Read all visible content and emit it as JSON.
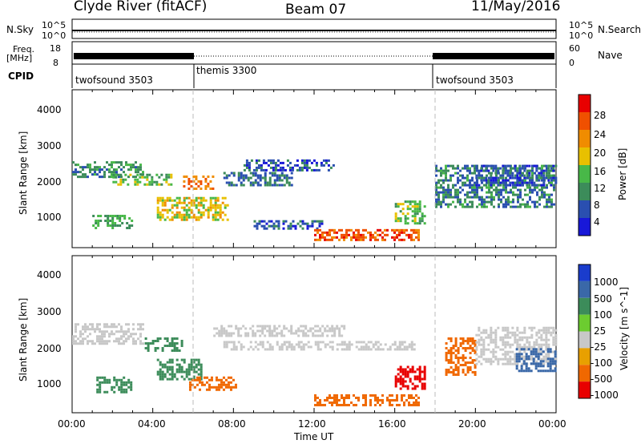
{
  "header": {
    "station": "Clyde River (fitACF)",
    "beam": "Beam 07",
    "date": "11/May/2016"
  },
  "noise_panel": {
    "left_label": "N.Sky",
    "right_label": "N.Search",
    "left_ticks": [
      "10^5",
      "10^0"
    ],
    "right_ticks": [
      "10^5",
      "10^0"
    ]
  },
  "freq_panel": {
    "left_label_line1": "Freq.",
    "left_label_line2": "[MHz]",
    "right_label": "Nave",
    "left_ticks": [
      "18",
      "8"
    ],
    "right_ticks": [
      "60",
      "0"
    ]
  },
  "cpid": {
    "label": "CPID",
    "segments": [
      {
        "name": "twofsound 3503",
        "start_h": 0,
        "end_h": 6.0
      },
      {
        "name": "themis 3300",
        "start_h": 6.0,
        "end_h": 18.0
      },
      {
        "name": "twofsound 3503",
        "start_h": 18.0,
        "end_h": 24
      }
    ]
  },
  "x_axis": {
    "label": "Time UT",
    "ticks": [
      "00:00",
      "04:00",
      "08:00",
      "12:00",
      "16:00",
      "20:00",
      "00:00"
    ]
  },
  "power_panel": {
    "ylabel": "Slant Range [km]",
    "yticks": [
      "1000",
      "2000",
      "3000",
      "4000"
    ],
    "colorbar_label": "Power [dB]",
    "colorbar_ticks": [
      "4",
      "8",
      "12",
      "16",
      "20",
      "24",
      "28"
    ],
    "colors": [
      "#1818d8",
      "#2a4fb0",
      "#3c8c5a",
      "#48b848",
      "#e8c000",
      "#f08c00",
      "#f05000",
      "#e80000"
    ]
  },
  "velocity_panel": {
    "ylabel": "Slant Range [km]",
    "yticks": [
      "1000",
      "2000",
      "3000",
      "4000"
    ],
    "colorbar_label": "Velocity [m s^-1]",
    "colorbar_ticks": [
      "1000",
      "500",
      "100",
      "25",
      "-25",
      "-100",
      "-500",
      "-1000"
    ],
    "colors": [
      "#1a3ccc",
      "#3a68a8",
      "#3c8c5a",
      "#6ccc30",
      "#c8c8c8",
      "#e8a000",
      "#f06800",
      "#e80000"
    ]
  },
  "chart_data": {
    "type": "heatmap",
    "x_range_hours": [
      0,
      24
    ],
    "y_range_km": [
      180,
      4600
    ],
    "power_regions": [
      {
        "t0": 0.0,
        "t1": 3.6,
        "r0": 2100,
        "r1": 2600,
        "db": 10
      },
      {
        "t0": 2.0,
        "t1": 5.0,
        "r0": 1900,
        "r1": 2250,
        "db": 14
      },
      {
        "t0": 1.0,
        "t1": 3.0,
        "r0": 700,
        "r1": 1100,
        "db": 12
      },
      {
        "t0": 4.2,
        "t1": 7.8,
        "r0": 900,
        "r1": 1600,
        "db": 18
      },
      {
        "t0": 5.5,
        "t1": 7.0,
        "r0": 1800,
        "r1": 2200,
        "db": 24
      },
      {
        "t0": 7.5,
        "t1": 11.0,
        "r0": 1900,
        "r1": 2300,
        "db": 8
      },
      {
        "t0": 8.5,
        "t1": 13.0,
        "r0": 2300,
        "r1": 2650,
        "db": 6
      },
      {
        "t0": 9.0,
        "t1": 12.5,
        "r0": 700,
        "r1": 950,
        "db": 6
      },
      {
        "t0": 12.0,
        "t1": 17.3,
        "r0": 350,
        "r1": 700,
        "db": 26
      },
      {
        "t0": 16.0,
        "t1": 17.5,
        "r0": 800,
        "r1": 1500,
        "db": 14
      },
      {
        "t0": 18.0,
        "t1": 24.0,
        "r0": 1300,
        "r1": 2500,
        "db": 9
      },
      {
        "t0": 20.0,
        "t1": 24.0,
        "r0": 1900,
        "r1": 2500,
        "db": 6
      }
    ],
    "velocity_regions": [
      {
        "t0": 0.0,
        "t1": 3.6,
        "r0": 2100,
        "r1": 2700,
        "v": 0
      },
      {
        "t0": 1.2,
        "t1": 3.0,
        "r0": 700,
        "r1": 1200,
        "v": 80
      },
      {
        "t0": 3.6,
        "t1": 5.5,
        "r0": 1900,
        "r1": 2300,
        "v": 90
      },
      {
        "t0": 4.2,
        "t1": 6.5,
        "r0": 1100,
        "r1": 1700,
        "v": 70
      },
      {
        "t0": 5.8,
        "t1": 8.2,
        "r0": 800,
        "r1": 1200,
        "v": -200
      },
      {
        "t0": 7.0,
        "t1": 13.5,
        "r0": 2300,
        "r1": 2650,
        "v": 0
      },
      {
        "t0": 7.5,
        "t1": 17.0,
        "r0": 1900,
        "r1": 2200,
        "v": 0
      },
      {
        "t0": 12.0,
        "t1": 17.3,
        "r0": 350,
        "r1": 700,
        "v": -250
      },
      {
        "t0": 16.0,
        "t1": 17.5,
        "r0": 800,
        "r1": 1500,
        "v": -600
      },
      {
        "t0": 18.5,
        "t1": 20.0,
        "r0": 1200,
        "r1": 2300,
        "v": -200
      },
      {
        "t0": 20.0,
        "t1": 24.0,
        "r0": 1500,
        "r1": 2600,
        "v": 0
      },
      {
        "t0": 22.0,
        "t1": 24.0,
        "r0": 1300,
        "r1": 2000,
        "v": 200
      }
    ]
  }
}
